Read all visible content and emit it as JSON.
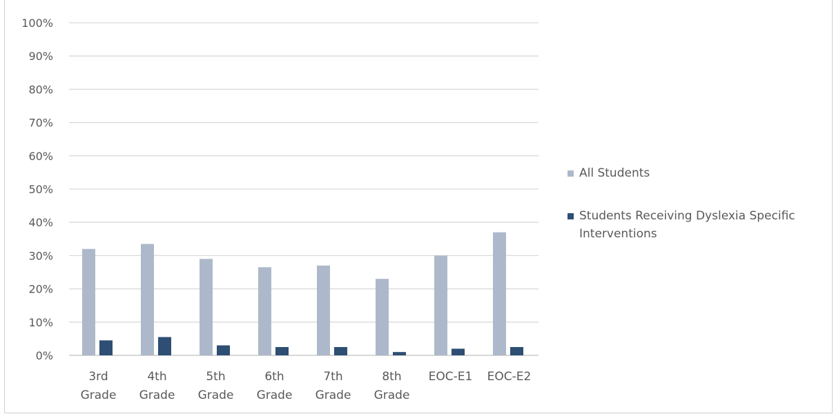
{
  "chart_data": {
    "type": "bar",
    "title": "",
    "xlabel": "",
    "ylabel": "",
    "ylim": [
      0,
      100
    ],
    "yticks": [
      "0%",
      "10%",
      "20%",
      "30%",
      "40%",
      "50%",
      "60%",
      "70%",
      "80%",
      "90%",
      "100%"
    ],
    "categories": [
      [
        "3rd",
        "Grade"
      ],
      [
        "4th",
        "Grade"
      ],
      [
        "5th",
        "Grade"
      ],
      [
        "6th",
        "Grade"
      ],
      [
        "7th",
        "Grade"
      ],
      [
        "8th",
        "Grade"
      ],
      [
        "EOC-E1"
      ],
      [
        "EOC-E2"
      ]
    ],
    "series": [
      {
        "name": "All Students",
        "color": "#adb9ca",
        "values": [
          32,
          33.5,
          29,
          26.5,
          27,
          23,
          30,
          37
        ]
      },
      {
        "name": "Students Receiving Dyslexia Specific Interventions",
        "color": "#2e4e73",
        "values": [
          4.5,
          5.5,
          3,
          2.5,
          2.5,
          1,
          2,
          2.5
        ]
      }
    ],
    "grid": true,
    "legend_position": "right"
  }
}
